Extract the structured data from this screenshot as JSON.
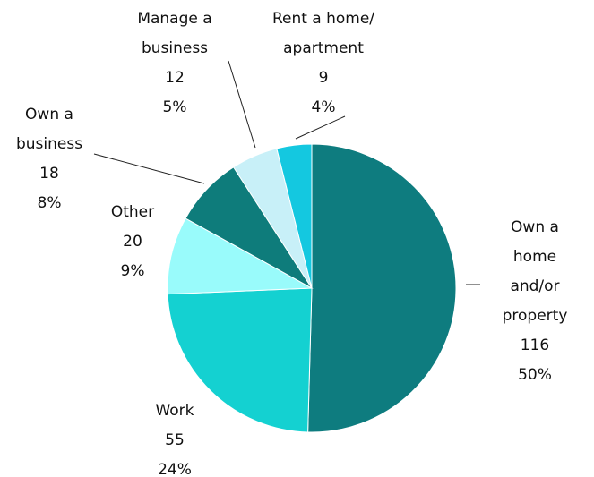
{
  "chart_data": {
    "type": "pie",
    "categories": [
      "Own a home\nand/or\nproperty",
      "Work",
      "Other",
      "Own a\nbusiness",
      "Manage a\nbusiness",
      "Rent a home/\napartment"
    ],
    "values": [
      116,
      55,
      20,
      18,
      12,
      9
    ],
    "percent_labels": [
      "50%",
      "24%",
      "9%",
      "8%",
      "5%",
      "4%"
    ],
    "colors": [
      "#0e7c7f",
      "#14d1d1",
      "#99fbfb",
      "#0e7c7b",
      "#c8f0f8",
      "#14c8e0"
    ]
  }
}
